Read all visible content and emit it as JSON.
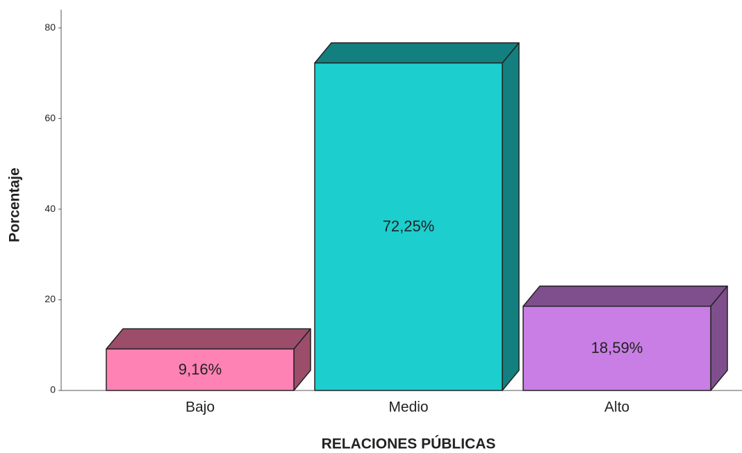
{
  "chart_data": {
    "type": "bar3d",
    "xlabel": "RELACIONES PÚBLICAS",
    "ylabel": "Porcentaje",
    "categories": [
      "Bajo",
      "Medio",
      "Alto"
    ],
    "values": [
      9.16,
      72.25,
      18.59
    ],
    "value_labels": [
      "9,16%",
      "72,25%",
      "18,59%"
    ],
    "colors": [
      "#ff82b4",
      "#1ccece",
      "#c97ee5"
    ],
    "shade_colors": [
      "#9c4d6a",
      "#137f7f",
      "#7e4f8c"
    ],
    "ylim": [
      0,
      84
    ],
    "yticks": [
      0,
      20,
      40,
      60,
      80
    ],
    "grid": false
  }
}
